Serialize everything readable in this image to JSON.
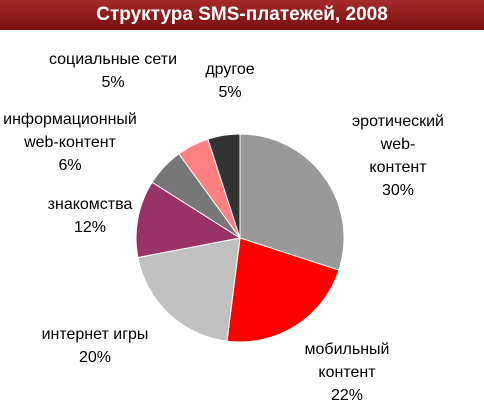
{
  "chart_data": {
    "type": "pie",
    "title": "Структура SMS-платежей, 2008",
    "categories": [
      "эротический web-\nконтент",
      "мобильный\nконтент",
      "интернет игры",
      "знакомства",
      "информационный\nweb-контент",
      "социальные сети",
      "другое"
    ],
    "values": [
      30,
      22,
      20,
      12,
      6,
      5,
      5
    ],
    "value_labels": [
      "30%",
      "22%",
      "20%",
      "12%",
      "6%",
      "5%",
      "5%"
    ],
    "colors": [
      "#999999",
      "#ff0000",
      "#c0c0c0",
      "#993366",
      "#777777",
      "#ff8080",
      "#333333"
    ]
  }
}
